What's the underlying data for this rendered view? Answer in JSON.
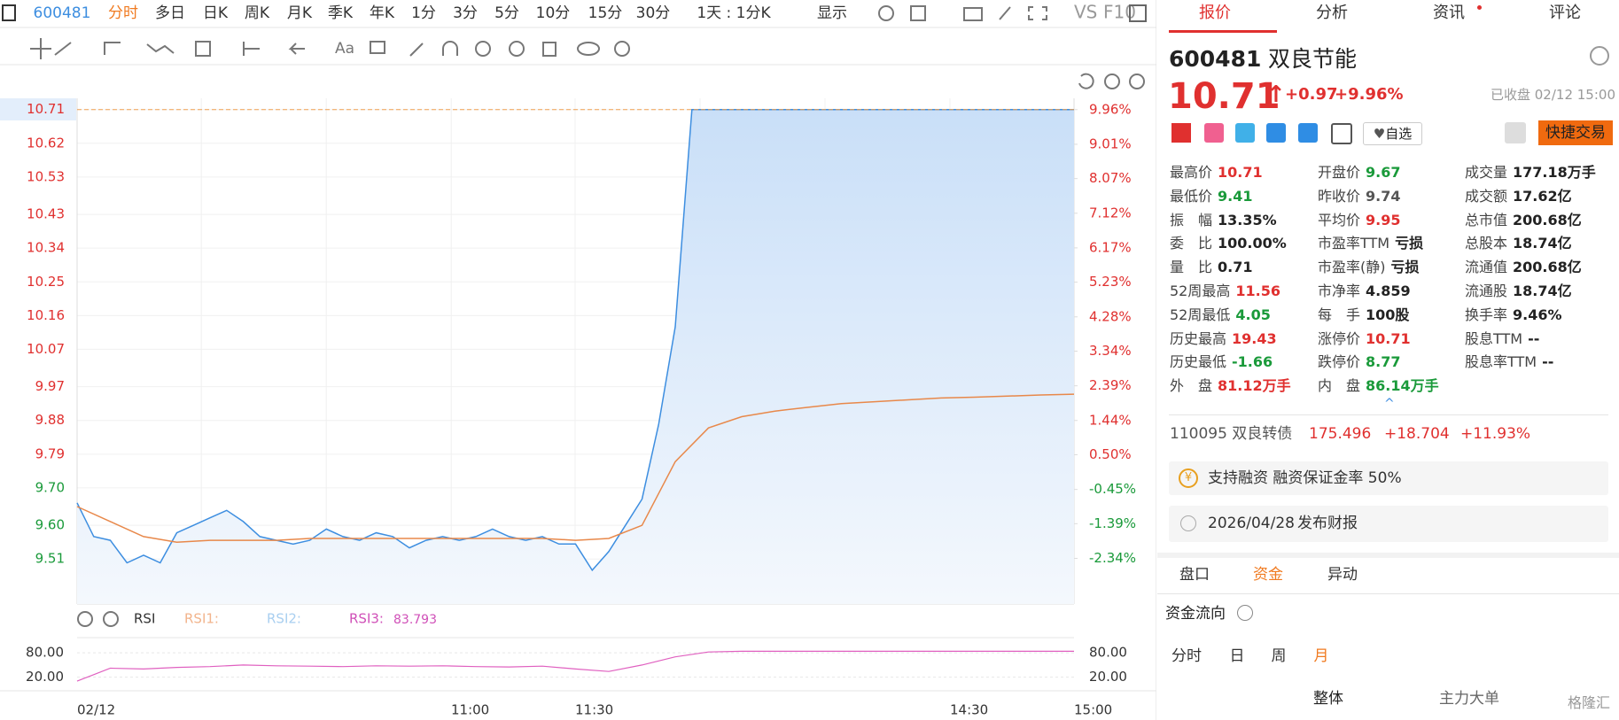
{
  "toolbar": {
    "code": "600481",
    "periods": [
      "分时",
      "多日",
      "日K",
      "周K",
      "月K",
      "季K",
      "年K",
      "1分",
      "3分",
      "5分",
      "10分",
      "15分",
      "30分"
    ],
    "range": "1天 : 1分K",
    "display": "显示",
    "vs": "VS",
    "f10": "F10",
    "text_tool": "Aa"
  },
  "chart": {
    "type": "line",
    "ylim": [
      9.39,
      10.74
    ],
    "yticks": [
      10.71,
      10.62,
      10.53,
      10.43,
      10.34,
      10.25,
      10.16,
      10.07,
      9.97,
      9.88,
      9.79,
      {
        "value": 9.7,
        "label": "9.70"
      },
      {
        "value": 9.6,
        "label": "9.60"
      },
      9.51
    ],
    "y2lim": [
      -3.59,
      10.27
    ],
    "y2ticks": [
      {
        "value": 9.96,
        "label": "9.96%"
      },
      {
        "value": 9.01,
        "label": "9.01%"
      },
      {
        "value": 8.07,
        "label": "8.07%"
      },
      {
        "value": 7.12,
        "label": "7.12%"
      },
      {
        "value": 6.17,
        "label": "6.17%"
      },
      {
        "value": 5.23,
        "label": "5.23%"
      },
      {
        "value": 4.28,
        "label": "4.28%"
      },
      {
        "value": 3.34,
        "label": "3.34%"
      },
      {
        "value": 2.39,
        "label": "2.39%"
      },
      {
        "value": 1.44,
        "label": "1.44%"
      },
      {
        "value": 0.5,
        "label": "0.50%"
      },
      {
        "value": -0.45,
        "label": "-0.45%"
      },
      {
        "value": -1.39,
        "label": "-1.39%"
      },
      {
        "value": -2.34,
        "label": "-2.34%"
      }
    ],
    "xticks": [
      "02/12",
      "11:00",
      "11:30",
      "14:30",
      "15:00"
    ],
    "limit_line": 10.71,
    "series": [
      {
        "color": "#3d8ee0",
        "values": [
          9.66,
          9.57,
          9.56,
          9.5,
          9.52,
          9.5,
          9.58,
          9.6,
          9.62,
          9.64,
          9.61,
          9.57,
          9.56,
          9.55,
          9.56,
          9.59,
          9.57,
          9.56,
          9.58,
          9.57,
          9.54,
          9.56,
          9.57,
          9.56,
          9.57,
          9.59,
          9.57,
          9.56,
          9.57,
          9.55,
          9.55,
          9.48,
          9.53,
          9.6,
          9.67,
          9.87,
          10.13,
          10.71,
          10.71,
          10.71,
          10.71,
          10.71,
          10.71,
          10.71,
          10.71,
          10.71,
          10.71,
          10.71,
          10.71,
          10.71,
          10.71,
          10.71,
          10.71,
          10.71,
          10.71,
          10.71,
          10.71,
          10.71,
          10.71,
          10.71,
          10.71
        ]
      },
      {
        "color": "#e8884a",
        "values": [
          9.65,
          9.61,
          9.57,
          9.555,
          9.56,
          9.56,
          9.56,
          9.565,
          9.565,
          9.565,
          9.565,
          9.565,
          9.565,
          9.565,
          9.565,
          9.56,
          9.565,
          9.6,
          9.77,
          9.86,
          9.89,
          9.905,
          9.915,
          9.925,
          9.93,
          9.935,
          9.94,
          9.942,
          9.945,
          9.948,
          9.95
        ]
      }
    ],
    "rsi": {
      "title": "RSI",
      "legend": [
        "RSI1:",
        "RSI2:",
        "RSI3:"
      ],
      "ylim": [
        -5,
        100
      ],
      "yticks": [
        {
          "value": 80,
          "label": "80.00"
        },
        {
          "value": 20,
          "label": "20.00"
        }
      ],
      "color": "#e060c0",
      "values": [
        10,
        42,
        40,
        44,
        46,
        50,
        48,
        47,
        46,
        48,
        47,
        48,
        46,
        45,
        47,
        40,
        34,
        50,
        70,
        82,
        83.8,
        83.8,
        83.8,
        83.8,
        83.8,
        83.8,
        83.8,
        83.8,
        83.8,
        83.8,
        83.793
      ]
    }
  },
  "quote": {
    "tabs": [
      "报价",
      "分析",
      "资讯",
      "评论"
    ],
    "code": "600481",
    "name": "双良节能",
    "price": "10.71",
    "change": "+0.97",
    "change_pct": "+9.96%",
    "status": "已收盘 02/12 15:00",
    "watch": "自选",
    "trade": "快捷交易",
    "stats": [
      [
        {
          "label": "最高价",
          "value": "10.71",
          "color": "#e0302f"
        },
        {
          "label": "最低价",
          "value": "9.41",
          "color": "#1a9a3a"
        },
        {
          "label": "振　幅",
          "value": "13.35%",
          "color": "#222"
        },
        {
          "label": "委　比",
          "value": "100.00%",
          "color": "#222"
        },
        {
          "label": "量　比",
          "value": "0.71",
          "color": "#222"
        },
        {
          "label": "52周最高",
          "value": "11.56",
          "color": "#e0302f"
        },
        {
          "label": "52周最低",
          "value": "4.05",
          "color": "#1a9a3a"
        },
        {
          "label": "历史最高",
          "value": "19.43",
          "color": "#e0302f"
        },
        {
          "label": "历史最低",
          "value": "-1.66",
          "color": "#1a9a3a"
        },
        {
          "label": "外　盘",
          "value": "81.12万手",
          "color": "#e0302f"
        }
      ],
      [
        {
          "label": "开盘价",
          "value": "9.67",
          "color": "#1a9a3a"
        },
        {
          "label": "昨收价",
          "value": "9.74",
          "color": "#555"
        },
        {
          "label": "平均价",
          "value": "9.95",
          "color": "#e0302f"
        },
        {
          "label": "市盈率TTM",
          "value": "亏损",
          "color": "#222"
        },
        {
          "label": "市盈率(静)",
          "value": "亏损",
          "color": "#222"
        },
        {
          "label": "市净率",
          "value": "4.859",
          "color": "#222"
        },
        {
          "label": "每　手",
          "value": "100股",
          "color": "#222"
        },
        {
          "label": "涨停价",
          "value": "10.71",
          "color": "#e0302f"
        },
        {
          "label": "跌停价",
          "value": "8.77",
          "color": "#1a9a3a"
        },
        {
          "label": "内　盘",
          "value": "86.14万手",
          "color": "#1a9a3a"
        }
      ],
      [
        {
          "label": "成交量",
          "value": "177.18万手",
          "color": "#222"
        },
        {
          "label": "成交额",
          "value": "17.62亿",
          "color": "#222"
        },
        {
          "label": "总市值",
          "value": "200.68亿",
          "color": "#222"
        },
        {
          "label": "总股本",
          "value": "18.74亿",
          "color": "#222"
        },
        {
          "label": "流通值",
          "value": "200.68亿",
          "color": "#222"
        },
        {
          "label": "流通股",
          "value": "18.74亿",
          "color": "#222"
        },
        {
          "label": "换手率",
          "value": "9.46%",
          "color": "#222"
        },
        {
          "label": "股息TTM",
          "value": "--",
          "color": "#222"
        },
        {
          "label": "股息率TTM",
          "value": "--",
          "color": "#222"
        }
      ]
    ],
    "bond": {
      "name": "110095 双良转债",
      "price": "175.496",
      "change": "+18.704",
      "change_pct": "+11.93%"
    },
    "margin": "支持融资 融资保证金率 50%",
    "report": {
      "date": "2026/04/28",
      "text": "发布财报"
    },
    "sub_tabs": [
      "盘口",
      "资金",
      "异动"
    ],
    "flow_title": "资金流向",
    "flow_periods": [
      "分时",
      "日",
      "周",
      "月"
    ],
    "flow_tabs": [
      "整体",
      "主力大单"
    ],
    "watermark": "格隆汇"
  }
}
